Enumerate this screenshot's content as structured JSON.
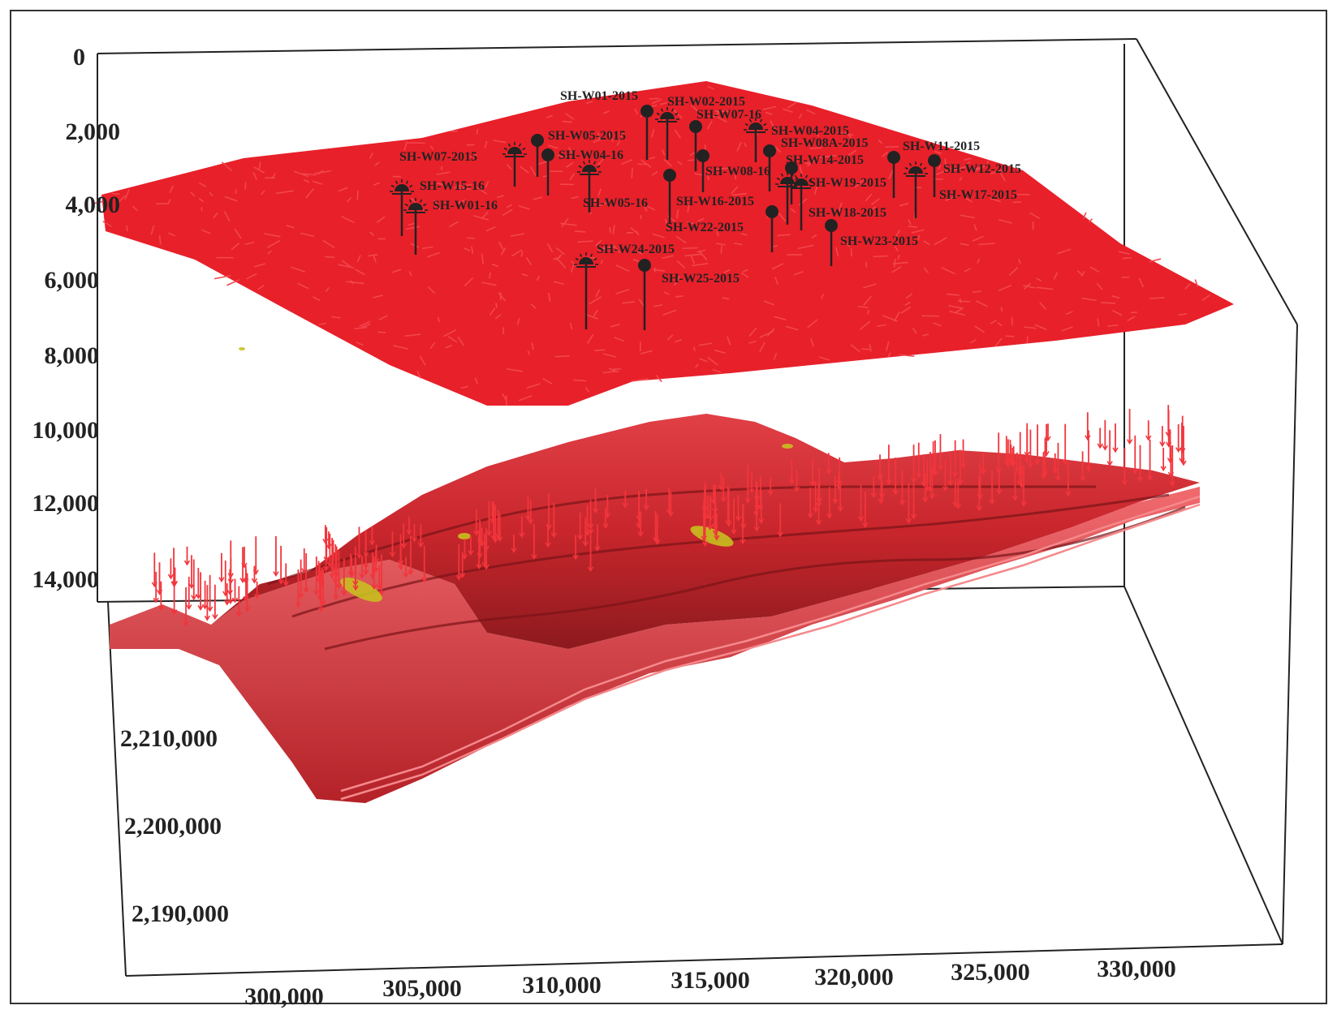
{
  "z_axis": {
    "ticks": [
      "0",
      "2,000",
      "4,000",
      "6,000",
      "8,000",
      "10,000",
      "12,000",
      "14,000"
    ]
  },
  "y_axis": {
    "ticks": [
      "2,210,000",
      "2,200,000",
      "2,190,000"
    ]
  },
  "x_axis": {
    "ticks": [
      "300,000",
      "305,000",
      "310,000",
      "315,000",
      "320,000",
      "325,000",
      "330,000"
    ]
  },
  "wells": [
    {
      "name": "SH-W01-2015",
      "symbol": "dot"
    },
    {
      "name": "SH-W02-2015",
      "symbol": "sun"
    },
    {
      "name": "SH-W07-16",
      "symbol": "dot"
    },
    {
      "name": "SH-W04-2015",
      "symbol": "sun"
    },
    {
      "name": "SH-W05-2015",
      "symbol": "dot"
    },
    {
      "name": "SH-W08A-2015",
      "symbol": "dot"
    },
    {
      "name": "SH-W11-2015",
      "symbol": "dot"
    },
    {
      "name": "SH-W07-2015",
      "symbol": "sun"
    },
    {
      "name": "SH-W04-16",
      "symbol": "dot"
    },
    {
      "name": "SH-W14-2015",
      "symbol": "dot"
    },
    {
      "name": "SH-W12-2015",
      "symbol": "dot"
    },
    {
      "name": "SH-W08-16",
      "symbol": "dot"
    },
    {
      "name": "SH-W15-16",
      "symbol": "sun"
    },
    {
      "name": "SH-W19-2015",
      "symbol": "sun"
    },
    {
      "name": "SH-W17-2015",
      "symbol": "sun"
    },
    {
      "name": "SH-W05-16",
      "symbol": "sun"
    },
    {
      "name": "SH-W16-2015",
      "symbol": "dot"
    },
    {
      "name": "SH-W01-16",
      "symbol": "sun"
    },
    {
      "name": "SH-W18-2015",
      "symbol": "sun"
    },
    {
      "name": "SH-W22-2015",
      "symbol": "dot"
    },
    {
      "name": "SH-W23-2015",
      "symbol": "dot"
    },
    {
      "name": "SH-W24-2015",
      "symbol": "sun"
    },
    {
      "name": "SH-W25-2015",
      "symbol": "dot"
    }
  ],
  "colors": {
    "surface_red": "#e8202a",
    "reservoir_red": "#c8262c",
    "reservoir_dark": "#7a1418",
    "reservoir_light": "#ee5a5e",
    "highlight_yellow": "#c8c020",
    "well_marker": "#222222"
  }
}
